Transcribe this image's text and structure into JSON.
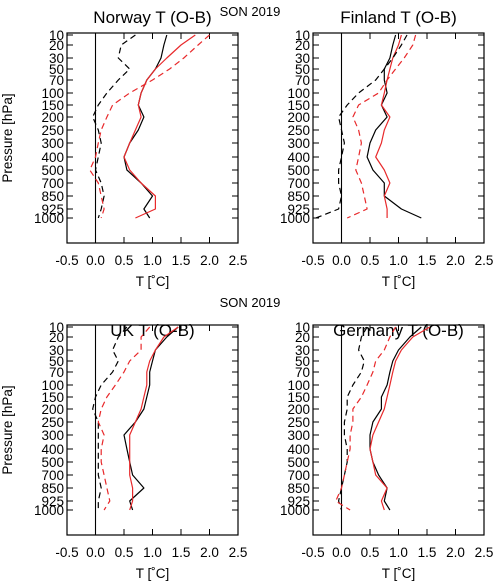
{
  "figure": {
    "suptitles": [
      "SON 2019",
      "SON 2019"
    ],
    "colors": {
      "obs_minus_bg": "#000000",
      "alt_experiment": "#e8292b",
      "axes": "#000000"
    }
  },
  "chart_data": [
    {
      "type": "line",
      "title": "Norway T (O-B)",
      "xlabel": "T [˚C]",
      "ylabel": "Pressure [hPa]",
      "xlim": [
        -0.5,
        2.5
      ],
      "xticks": [
        "-0.5",
        "0.0",
        "0.5",
        "1.0",
        "1.5",
        "2.0",
        "2.5"
      ],
      "y_levels": [
        10,
        20,
        30,
        50,
        70,
        100,
        150,
        200,
        250,
        300,
        400,
        500,
        700,
        850,
        925,
        1000
      ],
      "y_tick_labels": [
        "10",
        "20",
        "30",
        "50",
        "70",
        "100",
        "150",
        "200",
        "250",
        "300",
        "400",
        "500",
        "700",
        "850",
        "925",
        "1000"
      ],
      "series": [
        {
          "style": "solid",
          "color": "#000000",
          "x": [
            1.25,
            1.2,
            1.15,
            1.05,
            0.9,
            0.8,
            0.75,
            0.85,
            0.75,
            0.6,
            0.5,
            0.55,
            0.8,
            1.0,
            0.85,
            0.95
          ]
        },
        {
          "style": "solid",
          "color": "#e8292b",
          "x": [
            1.75,
            1.5,
            1.25,
            1.05,
            0.9,
            0.8,
            0.75,
            0.8,
            0.7,
            0.6,
            0.5,
            0.6,
            0.8,
            1.05,
            1.05,
            0.7
          ]
        },
        {
          "style": "dashed",
          "color": "#000000",
          "x": [
            0.7,
            0.45,
            0.4,
            0.6,
            0.4,
            0.2,
            0.05,
            -0.05,
            0.05,
            0.1,
            0.05,
            0.0,
            0.1,
            0.15,
            0.1,
            0.05
          ]
        },
        {
          "style": "dashed",
          "color": "#e8292b",
          "x": [
            2.0,
            1.8,
            1.55,
            1.3,
            1.0,
            0.6,
            0.3,
            0.2,
            0.1,
            0.05,
            0.0,
            -0.1,
            0.05,
            0.1,
            0.15,
            0.1
          ]
        }
      ],
      "zero_line": 0.0
    },
    {
      "type": "line",
      "title": "Finland T (O-B)",
      "xlabel": "T [˚C]",
      "ylabel": "",
      "xlim": [
        -0.5,
        2.5
      ],
      "xticks": [
        "-0.5",
        "0.0",
        "0.5",
        "1.0",
        "1.5",
        "2.0",
        "2.5"
      ],
      "y_levels": [
        10,
        20,
        30,
        50,
        70,
        100,
        150,
        200,
        250,
        300,
        400,
        500,
        700,
        850,
        925,
        1000
      ],
      "y_tick_labels": [
        "10",
        "20",
        "30",
        "50",
        "70",
        "100",
        "150",
        "200",
        "250",
        "300",
        "400",
        "500",
        "700",
        "850",
        "925",
        "1000"
      ],
      "series": [
        {
          "style": "solid",
          "color": "#000000",
          "x": [
            0.95,
            0.9,
            0.85,
            0.75,
            0.75,
            0.8,
            0.7,
            0.8,
            0.6,
            0.5,
            0.45,
            0.55,
            0.75,
            0.75,
            1.05,
            1.4
          ]
        },
        {
          "style": "solid",
          "color": "#e8292b",
          "x": [
            1.05,
            1.0,
            0.9,
            0.85,
            0.8,
            0.75,
            0.7,
            0.85,
            0.75,
            0.7,
            0.6,
            0.75,
            0.85,
            0.75,
            0.8,
            0.8
          ]
        },
        {
          "style": "dashed",
          "color": "#000000",
          "x": [
            1.15,
            1.05,
            0.9,
            0.75,
            0.6,
            0.3,
            0.1,
            -0.05,
            0.0,
            0.05,
            0.0,
            -0.05,
            -0.05,
            0.0,
            -0.05,
            -0.45
          ]
        },
        {
          "style": "dashed",
          "color": "#e8292b",
          "x": [
            1.3,
            1.25,
            1.1,
            0.95,
            0.8,
            0.65,
            0.3,
            0.2,
            0.3,
            0.35,
            0.3,
            0.25,
            0.35,
            0.4,
            0.45,
            0.1
          ]
        }
      ],
      "zero_line": 0.0
    },
    {
      "type": "line",
      "title": "UK T (O-B)",
      "xlabel": "T [˚C]",
      "ylabel": "Pressure [hPa]",
      "xlim": [
        -0.5,
        2.5
      ],
      "xticks": [
        "-0.5",
        "0.0",
        "0.5",
        "1.0",
        "1.5",
        "2.0",
        "2.5"
      ],
      "y_levels": [
        10,
        20,
        30,
        50,
        70,
        100,
        150,
        200,
        250,
        300,
        400,
        500,
        700,
        850,
        925,
        1000
      ],
      "y_tick_labels": [
        "10",
        "20",
        "30",
        "50",
        "70",
        "100",
        "150",
        "200",
        "250",
        "300",
        "400",
        "500",
        "700",
        "850",
        "925",
        "1000"
      ],
      "series": [
        {
          "style": "solid",
          "color": "#000000",
          "x": [
            1.45,
            1.25,
            1.05,
            1.0,
            0.95,
            0.95,
            0.9,
            0.85,
            0.7,
            0.5,
            0.55,
            0.6,
            0.65,
            0.85,
            0.6,
            0.65
          ]
        },
        {
          "style": "solid",
          "color": "#e8292b",
          "x": [
            1.45,
            1.2,
            1.05,
            0.95,
            0.9,
            0.9,
            0.85,
            0.8,
            0.7,
            0.6,
            0.6,
            0.6,
            0.6,
            0.65,
            0.65,
            0.6
          ]
        },
        {
          "style": "dashed",
          "color": "#000000",
          "x": [
            0.55,
            0.4,
            0.3,
            0.4,
            0.3,
            0.1,
            0.0,
            -0.05,
            0.05,
            0.05,
            0.05,
            0.05,
            0.05,
            0.1,
            0.05,
            0.05
          ]
        },
        {
          "style": "dashed",
          "color": "#e8292b",
          "x": [
            0.95,
            0.8,
            0.8,
            0.6,
            0.5,
            0.35,
            0.2,
            0.1,
            0.05,
            0.15,
            0.1,
            0.1,
            0.15,
            0.2,
            0.25,
            0.15
          ]
        }
      ],
      "zero_line": 0.0
    },
    {
      "type": "line",
      "title": "Germany T (O-B)",
      "xlabel": "T [˚C]",
      "ylabel": "",
      "xlim": [
        -0.5,
        2.5
      ],
      "xticks": [
        "-0.5",
        "0.0",
        "0.5",
        "1.0",
        "1.5",
        "2.0",
        "2.5"
      ],
      "y_levels": [
        10,
        20,
        30,
        50,
        70,
        100,
        150,
        200,
        250,
        300,
        400,
        500,
        700,
        850,
        925,
        1000
      ],
      "y_tick_labels": [
        "10",
        "20",
        "30",
        "50",
        "70",
        "100",
        "150",
        "200",
        "250",
        "300",
        "400",
        "500",
        "700",
        "850",
        "925",
        "1000"
      ],
      "series": [
        {
          "style": "solid",
          "color": "#000000",
          "x": [
            1.4,
            1.2,
            1.0,
            0.9,
            0.85,
            0.8,
            0.7,
            0.7,
            0.55,
            0.5,
            0.5,
            0.55,
            0.65,
            0.8,
            0.75,
            0.85
          ]
        },
        {
          "style": "solid",
          "color": "#e8292b",
          "x": [
            1.55,
            1.25,
            1.05,
            0.95,
            0.9,
            0.85,
            0.8,
            0.75,
            0.65,
            0.55,
            0.5,
            0.55,
            0.6,
            0.8,
            0.7,
            0.75
          ]
        },
        {
          "style": "dashed",
          "color": "#000000",
          "x": [
            0.45,
            0.35,
            0.3,
            0.4,
            0.35,
            0.2,
            0.1,
            0.1,
            0.05,
            0.05,
            0.1,
            0.1,
            0.05,
            0.0,
            -0.05,
            0.0
          ]
        },
        {
          "style": "dashed",
          "color": "#e8292b",
          "x": [
            0.95,
            0.85,
            0.75,
            0.6,
            0.55,
            0.45,
            0.35,
            0.2,
            0.2,
            0.15,
            0.15,
            0.1,
            0.05,
            0.0,
            -0.1,
            0.15
          ]
        }
      ],
      "zero_line": 0.0
    }
  ]
}
